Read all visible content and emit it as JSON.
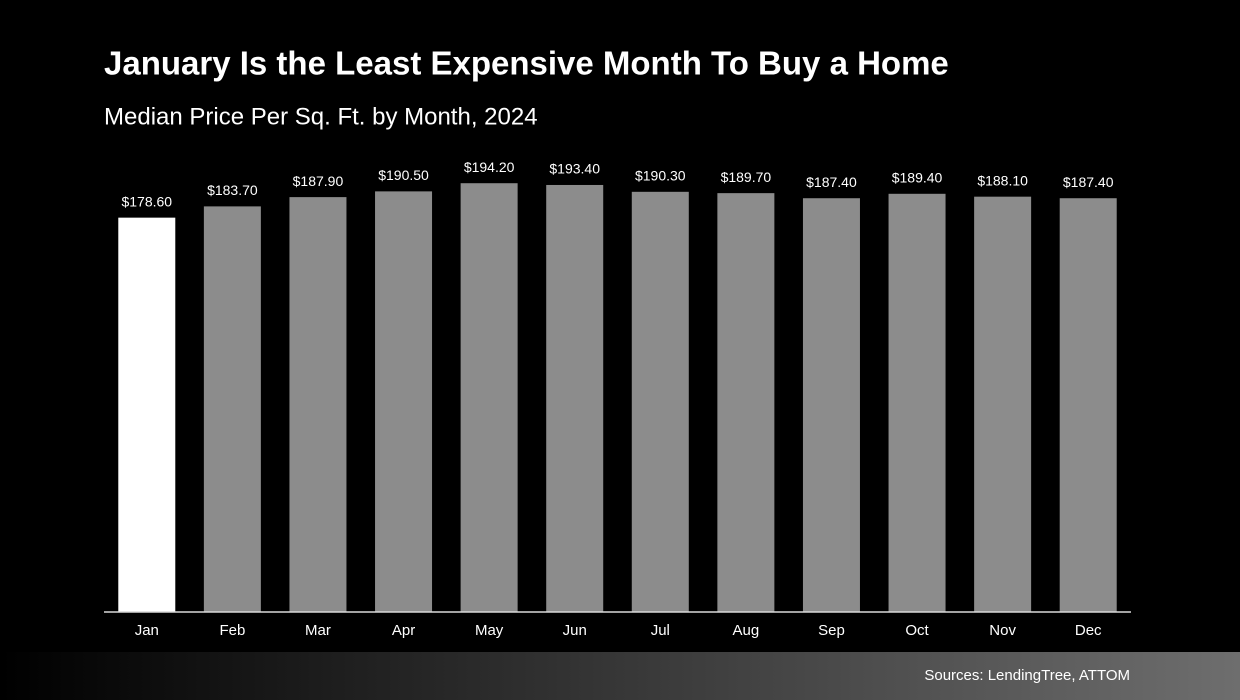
{
  "chart_data": {
    "type": "bar",
    "title": "January Is the Least Expensive Month To Buy a Home",
    "subtitle": "Median Price Per Sq. Ft. by Month, 2024",
    "categories": [
      "Jan",
      "Feb",
      "Mar",
      "Apr",
      "May",
      "Jun",
      "Jul",
      "Aug",
      "Sep",
      "Oct",
      "Nov",
      "Dec"
    ],
    "values": [
      178.6,
      183.7,
      187.9,
      190.5,
      194.2,
      193.4,
      190.3,
      189.7,
      187.4,
      189.4,
      188.1,
      187.4
    ],
    "value_labels": [
      "$178.60",
      "$183.70",
      "$187.90",
      "$190.50",
      "$194.20",
      "$193.40",
      "$190.30",
      "$189.70",
      "$187.40",
      "$189.40",
      "$188.10",
      "$187.40"
    ],
    "colors": [
      "#ffffff",
      "#8c8c8c",
      "#8c8c8c",
      "#8c8c8c",
      "#8c8c8c",
      "#8c8c8c",
      "#8c8c8c",
      "#8c8c8c",
      "#8c8c8c",
      "#8c8c8c",
      "#8c8c8c",
      "#8c8c8c"
    ],
    "ylim": [
      0,
      200
    ],
    "source": "Sources: LendingTree, ATTOM"
  }
}
